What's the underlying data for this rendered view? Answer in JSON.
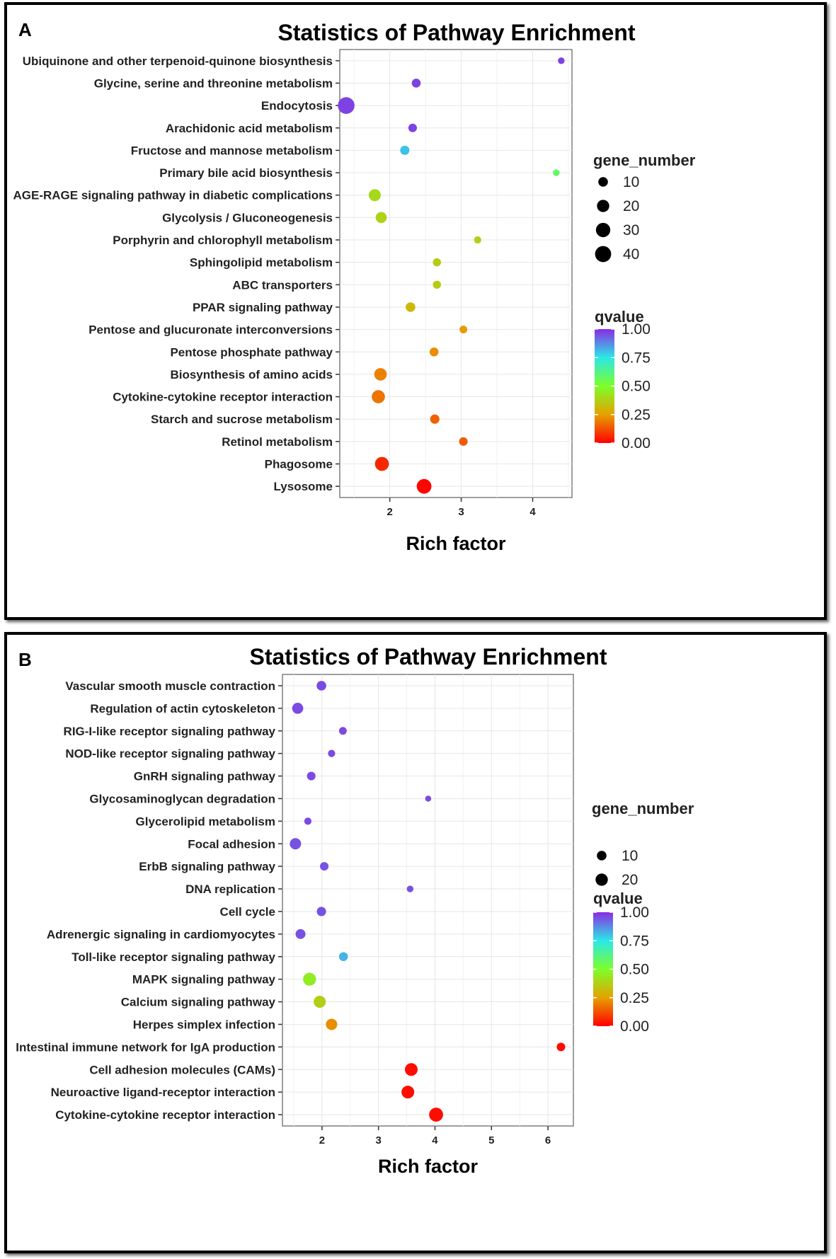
{
  "chart_data": [
    {
      "panel": "A",
      "type": "scatter",
      "title": "Statistics of Pathway Enrichment",
      "xlabel": "Rich factor",
      "ylabel": "",
      "xlim": [
        1.3,
        4.55
      ],
      "xticks": [
        2,
        3,
        4
      ],
      "grid": true,
      "size_legend": {
        "title": "gene_number",
        "values": [
          10,
          20,
          30,
          40
        ]
      },
      "color_legend": {
        "title": "qvalue",
        "ticks": [
          "1.00",
          "0.75",
          "0.50",
          "0.25",
          "0.00"
        ],
        "range": [
          0,
          1
        ]
      },
      "categories": [
        "Ubiquinone and other terpenoid-quinone biosynthesis",
        "Glycine, serine and threonine metabolism",
        "Endocytosis",
        "Arachidonic acid metabolism",
        "Fructose and mannose metabolism",
        "Primary bile acid biosynthesis",
        "AGE-RAGE signaling pathway in diabetic complications",
        "Glycolysis / Gluconeogenesis",
        "Porphyrin and chlorophyll metabolism",
        "Sphingolipid metabolism",
        "ABC transporters",
        "PPAR signaling pathway",
        "Pentose and glucuronate interconversions",
        "Pentose phosphate pathway",
        "Biosynthesis of amino acids",
        "Cytokine-cytokine receptor interaction",
        "Starch and sucrose metabolism",
        "Retinol metabolism",
        "Phagosome",
        "Lysosome"
      ],
      "points": [
        {
          "rich_factor": 4.4,
          "gene_number": 3,
          "qvalue": 0.97
        },
        {
          "rich_factor": 2.37,
          "gene_number": 8,
          "qvalue": 0.97
        },
        {
          "rich_factor": 1.39,
          "gene_number": 44,
          "qvalue": 0.97
        },
        {
          "rich_factor": 2.32,
          "gene_number": 7,
          "qvalue": 0.97
        },
        {
          "rich_factor": 2.21,
          "gene_number": 9,
          "qvalue": 0.8
        },
        {
          "rich_factor": 4.33,
          "gene_number": 3,
          "qvalue": 0.58
        },
        {
          "rich_factor": 1.79,
          "gene_number": 19,
          "qvalue": 0.4
        },
        {
          "rich_factor": 1.88,
          "gene_number": 15,
          "qvalue": 0.38
        },
        {
          "rich_factor": 3.23,
          "gene_number": 4,
          "qvalue": 0.37
        },
        {
          "rich_factor": 2.66,
          "gene_number": 6,
          "qvalue": 0.36
        },
        {
          "rich_factor": 2.66,
          "gene_number": 6,
          "qvalue": 0.36
        },
        {
          "rich_factor": 2.29,
          "gene_number": 10,
          "qvalue": 0.31
        },
        {
          "rich_factor": 3.03,
          "gene_number": 5,
          "qvalue": 0.24
        },
        {
          "rich_factor": 2.62,
          "gene_number": 8,
          "qvalue": 0.22
        },
        {
          "rich_factor": 1.87,
          "gene_number": 21,
          "qvalue": 0.2
        },
        {
          "rich_factor": 1.84,
          "gene_number": 24,
          "qvalue": 0.18
        },
        {
          "rich_factor": 2.63,
          "gene_number": 9,
          "qvalue": 0.15
        },
        {
          "rich_factor": 3.03,
          "gene_number": 7,
          "qvalue": 0.14
        },
        {
          "rich_factor": 1.89,
          "gene_number": 28,
          "qvalue": 0.06
        },
        {
          "rich_factor": 2.48,
          "gene_number": 32,
          "qvalue": 0.01
        }
      ]
    },
    {
      "panel": "B",
      "type": "scatter",
      "title": "Statistics of Pathway Enrichment",
      "xlabel": "Rich factor",
      "ylabel": "",
      "xlim": [
        1.3,
        6.45
      ],
      "xticks": [
        2,
        3,
        4,
        5,
        6
      ],
      "grid": true,
      "size_legend": {
        "title": "gene_number",
        "values": [
          10,
          20
        ]
      },
      "color_legend": {
        "title": "qvalue",
        "ticks": [
          "1.00",
          "0.75",
          "0.50",
          "0.25",
          "0.00"
        ],
        "range": [
          0,
          1
        ]
      },
      "categories": [
        "Vascular smooth muscle contraction",
        "Regulation of actin cytoskeleton",
        "RIG-I-like receptor signaling pathway",
        "NOD-like receptor signaling pathway",
        "GnRH signaling pathway",
        "Glycosaminoglycan degradation",
        "Glycerolipid metabolism",
        "Focal adhesion",
        "ErbB signaling pathway",
        "DNA replication",
        "Cell cycle",
        "Adrenergic signaling in cardiomyocytes",
        "Toll-like receptor signaling pathway",
        "MAPK signaling pathway",
        "Calcium signaling pathway",
        "Herpes simplex infection",
        "Intestinal immune network for IgA production",
        "Cell adhesion molecules (CAMs)",
        "Neuroactive ligand-receptor interaction",
        "Cytokine-cytokine receptor interaction"
      ],
      "points": [
        {
          "rich_factor": 1.99,
          "gene_number": 10,
          "qvalue": 0.96
        },
        {
          "rich_factor": 1.57,
          "gene_number": 15,
          "qvalue": 0.96
        },
        {
          "rich_factor": 2.37,
          "gene_number": 5,
          "qvalue": 0.96
        },
        {
          "rich_factor": 2.17,
          "gene_number": 4,
          "qvalue": 0.96
        },
        {
          "rich_factor": 1.81,
          "gene_number": 7,
          "qvalue": 0.96
        },
        {
          "rich_factor": 3.88,
          "gene_number": 2,
          "qvalue": 0.96
        },
        {
          "rich_factor": 1.75,
          "gene_number": 4,
          "qvalue": 0.96
        },
        {
          "rich_factor": 1.53,
          "gene_number": 16,
          "qvalue": 0.95
        },
        {
          "rich_factor": 2.04,
          "gene_number": 7,
          "qvalue": 0.95
        },
        {
          "rich_factor": 3.56,
          "gene_number": 3,
          "qvalue": 0.95
        },
        {
          "rich_factor": 1.99,
          "gene_number": 9,
          "qvalue": 0.95
        },
        {
          "rich_factor": 1.62,
          "gene_number": 11,
          "qvalue": 0.95
        },
        {
          "rich_factor": 2.38,
          "gene_number": 8,
          "qvalue": 0.82
        },
        {
          "rich_factor": 1.78,
          "gene_number": 23,
          "qvalue": 0.45
        },
        {
          "rich_factor": 1.96,
          "gene_number": 19,
          "qvalue": 0.37
        },
        {
          "rich_factor": 2.17,
          "gene_number": 16,
          "qvalue": 0.22
        },
        {
          "rich_factor": 6.23,
          "gene_number": 7,
          "qvalue": 0.02
        },
        {
          "rich_factor": 3.58,
          "gene_number": 22,
          "qvalue": 0.02
        },
        {
          "rich_factor": 3.52,
          "gene_number": 22,
          "qvalue": 0.02
        },
        {
          "rich_factor": 4.02,
          "gene_number": 28,
          "qvalue": 0.02
        }
      ]
    }
  ]
}
